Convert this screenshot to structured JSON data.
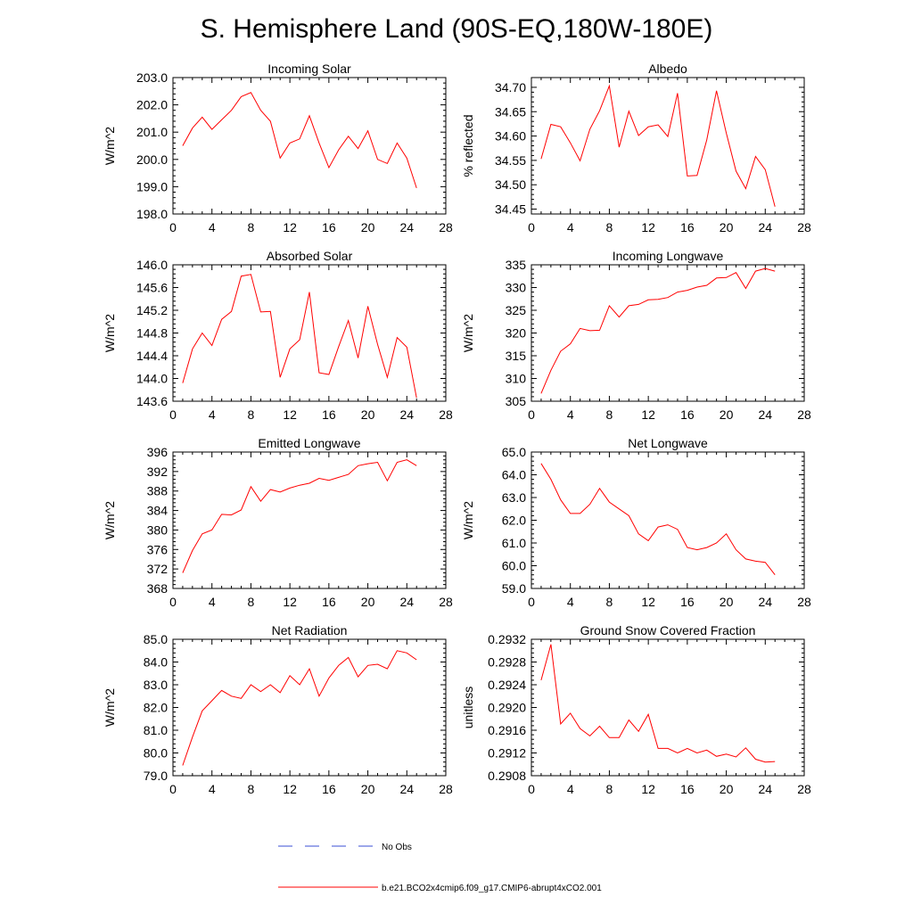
{
  "figure_title": "S. Hemisphere Land (90S-EQ,180W-180E)",
  "colors": {
    "model_line": "#ff0000",
    "obs_line": "#3b4fd6",
    "axis": "#000000"
  },
  "legend": {
    "obs_label": "No Obs",
    "model_label": "b.e21.BCO2x4cmip6.f09_g17.CMIP6-abrupt4xCO2.001"
  },
  "chart_data": [
    {
      "type": "line",
      "title": "Incoming Solar",
      "xlabel": "",
      "ylabel": "W/m^2",
      "xlim": [
        0,
        28
      ],
      "ylim": [
        198.0,
        203.0
      ],
      "xticks": [
        "0",
        "4",
        "8",
        "12",
        "16",
        "20",
        "24",
        "28"
      ],
      "yticks": [
        "198.0",
        "199.0",
        "200.0",
        "201.0",
        "202.0",
        "203.0"
      ],
      "x": [
        1,
        2,
        3,
        4,
        5,
        6,
        7,
        8,
        9,
        10,
        11,
        12,
        13,
        14,
        15,
        16,
        17,
        18,
        19,
        20,
        21,
        22,
        23,
        24,
        25
      ],
      "series": [
        {
          "name": "b.e21.BCO2x4cmip6.f09_g17.CMIP6-abrupt4xCO2.001",
          "values": [
            200.5,
            201.15,
            201.55,
            201.1,
            201.45,
            201.8,
            202.3,
            202.45,
            201.8,
            201.4,
            200.05,
            200.6,
            200.75,
            201.6,
            200.6,
            199.7,
            200.35,
            200.85,
            200.4,
            201.05,
            200.0,
            199.85,
            200.6,
            200.05,
            198.95
          ]
        }
      ]
    },
    {
      "type": "line",
      "title": "Albedo",
      "xlabel": "",
      "ylabel": "% reflected",
      "xlim": [
        0,
        28
      ],
      "ylim": [
        34.44,
        34.72
      ],
      "xticks": [
        "0",
        "4",
        "8",
        "12",
        "16",
        "20",
        "24",
        "28"
      ],
      "yticks": [
        "34.45",
        "34.50",
        "34.55",
        "34.60",
        "34.65",
        "34.70"
      ],
      "x": [
        1,
        2,
        3,
        4,
        5,
        6,
        7,
        8,
        9,
        10,
        11,
        12,
        13,
        14,
        15,
        16,
        17,
        18,
        19,
        20,
        21,
        22,
        23,
        24,
        25
      ],
      "series": [
        {
          "name": "b.e21.BCO2x4cmip6.f09_g17.CMIP6-abrupt4xCO2.001",
          "values": [
            34.553,
            34.624,
            34.619,
            34.586,
            34.549,
            34.614,
            34.652,
            34.703,
            34.577,
            34.651,
            34.601,
            34.619,
            34.623,
            34.599,
            34.688,
            34.518,
            34.519,
            34.592,
            34.693,
            34.606,
            34.528,
            34.492,
            34.558,
            34.531,
            34.455
          ]
        }
      ]
    },
    {
      "type": "line",
      "title": "Absorbed Solar",
      "xlabel": "",
      "ylabel": "W/m^2",
      "xlim": [
        0,
        28
      ],
      "ylim": [
        143.6,
        146.0
      ],
      "xticks": [
        "0",
        "4",
        "8",
        "12",
        "16",
        "20",
        "24",
        "28"
      ],
      "yticks": [
        "143.6",
        "144.0",
        "144.4",
        "144.8",
        "145.2",
        "145.6",
        "146.0"
      ],
      "x": [
        1,
        2,
        3,
        4,
        5,
        6,
        7,
        8,
        9,
        10,
        11,
        12,
        13,
        14,
        15,
        16,
        17,
        18,
        19,
        20,
        21,
        22,
        23,
        24,
        25
      ],
      "series": [
        {
          "name": "b.e21.BCO2x4cmip6.f09_g17.CMIP6-abrupt4xCO2.001",
          "values": [
            143.92,
            144.52,
            144.8,
            144.58,
            145.04,
            145.18,
            145.8,
            145.83,
            145.17,
            145.18,
            144.02,
            144.52,
            144.68,
            145.52,
            144.1,
            144.07,
            144.56,
            145.02,
            144.36,
            145.27,
            144.6,
            144.02,
            144.72,
            144.55,
            143.66
          ]
        }
      ]
    },
    {
      "type": "line",
      "title": "Incoming Longwave",
      "xlabel": "",
      "ylabel": "W/m^2",
      "xlim": [
        0,
        28
      ],
      "ylim": [
        305,
        335
      ],
      "xticks": [
        "0",
        "4",
        "8",
        "12",
        "16",
        "20",
        "24",
        "28"
      ],
      "yticks": [
        "305",
        "310",
        "315",
        "320",
        "325",
        "330",
        "335"
      ],
      "x": [
        1,
        2,
        3,
        4,
        5,
        6,
        7,
        8,
        9,
        10,
        11,
        12,
        13,
        14,
        15,
        16,
        17,
        18,
        19,
        20,
        21,
        22,
        23,
        24,
        25
      ],
      "series": [
        {
          "name": "b.e21.BCO2x4cmip6.f09_g17.CMIP6-abrupt4xCO2.001",
          "values": [
            306.7,
            311.8,
            316.0,
            317.6,
            321.0,
            320.5,
            320.6,
            326.0,
            323.5,
            326.0,
            326.3,
            327.3,
            327.4,
            327.8,
            329.0,
            329.4,
            330.1,
            330.5,
            332.1,
            332.2,
            333.3,
            329.8,
            333.6,
            334.2,
            333.6
          ]
        }
      ]
    },
    {
      "type": "line",
      "title": "Emitted Longwave",
      "xlabel": "",
      "ylabel": "W/m^2",
      "xlim": [
        0,
        28
      ],
      "ylim": [
        368,
        396
      ],
      "xticks": [
        "0",
        "4",
        "8",
        "12",
        "16",
        "20",
        "24",
        "28"
      ],
      "yticks": [
        "368",
        "372",
        "376",
        "380",
        "384",
        "388",
        "392",
        "396"
      ],
      "x": [
        1,
        2,
        3,
        4,
        5,
        6,
        7,
        8,
        9,
        10,
        11,
        12,
        13,
        14,
        15,
        16,
        17,
        18,
        19,
        20,
        21,
        22,
        23,
        24,
        25
      ],
      "series": [
        {
          "name": "b.e21.BCO2x4cmip6.f09_g17.CMIP6-abrupt4xCO2.001",
          "values": [
            371.2,
            375.8,
            379.2,
            380.0,
            383.2,
            383.1,
            384.1,
            388.9,
            385.9,
            388.3,
            387.8,
            388.6,
            389.2,
            389.6,
            390.6,
            390.2,
            390.8,
            391.4,
            393.2,
            393.6,
            393.9,
            390.1,
            393.9,
            394.4,
            393.2
          ]
        }
      ]
    },
    {
      "type": "line",
      "title": "Net Longwave",
      "xlabel": "",
      "ylabel": "W/m^2",
      "xlim": [
        0,
        28
      ],
      "ylim": [
        59.0,
        65.0
      ],
      "xticks": [
        "0",
        "4",
        "8",
        "12",
        "16",
        "20",
        "24",
        "28"
      ],
      "yticks": [
        "59.0",
        "60.0",
        "61.0",
        "62.0",
        "63.0",
        "64.0",
        "65.0"
      ],
      "x": [
        1,
        2,
        3,
        4,
        5,
        6,
        7,
        8,
        9,
        10,
        11,
        12,
        13,
        14,
        15,
        16,
        17,
        18,
        19,
        20,
        21,
        22,
        23,
        24,
        25
      ],
      "series": [
        {
          "name": "b.e21.BCO2x4cmip6.f09_g17.CMIP6-abrupt4xCO2.001",
          "values": [
            64.5,
            63.8,
            62.9,
            62.3,
            62.3,
            62.7,
            63.4,
            62.8,
            62.5,
            62.2,
            61.4,
            61.1,
            61.7,
            61.8,
            61.6,
            60.8,
            60.7,
            60.8,
            61.0,
            61.4,
            60.7,
            60.3,
            60.2,
            60.15,
            59.6
          ]
        }
      ]
    },
    {
      "type": "line",
      "title": "Net Radiation",
      "xlabel": "",
      "ylabel": "W/m^2",
      "xlim": [
        0,
        28
      ],
      "ylim": [
        79.0,
        85.0
      ],
      "xticks": [
        "0",
        "4",
        "8",
        "12",
        "16",
        "20",
        "24",
        "28"
      ],
      "yticks": [
        "79.0",
        "80.0",
        "81.0",
        "82.0",
        "83.0",
        "84.0",
        "85.0"
      ],
      "x": [
        1,
        2,
        3,
        4,
        5,
        6,
        7,
        8,
        9,
        10,
        11,
        12,
        13,
        14,
        15,
        16,
        17,
        18,
        19,
        20,
        21,
        22,
        23,
        24,
        25
      ],
      "series": [
        {
          "name": "b.e21.BCO2x4cmip6.f09_g17.CMIP6-abrupt4xCO2.001",
          "values": [
            79.45,
            80.7,
            81.85,
            82.3,
            82.75,
            82.5,
            82.4,
            83.0,
            82.7,
            83.0,
            82.65,
            83.4,
            83.0,
            83.7,
            82.5,
            83.3,
            83.85,
            84.2,
            83.35,
            83.85,
            83.9,
            83.7,
            84.5,
            84.4,
            84.1
          ]
        }
      ]
    },
    {
      "type": "line",
      "title": "Ground Snow Covered Fraction",
      "xlabel": "",
      "ylabel": "unitless",
      "xlim": [
        0,
        28
      ],
      "ylim": [
        0.2908,
        0.2932
      ],
      "xticks": [
        "0",
        "4",
        "8",
        "12",
        "16",
        "20",
        "24",
        "28"
      ],
      "yticks": [
        "0.2908",
        "0.2912",
        "0.2916",
        "0.2920",
        "0.2924",
        "0.2928",
        "0.2932"
      ],
      "x": [
        1,
        2,
        3,
        4,
        5,
        6,
        7,
        8,
        9,
        10,
        11,
        12,
        13,
        14,
        15,
        16,
        17,
        18,
        19,
        20,
        21,
        22,
        23,
        24,
        25
      ],
      "series": [
        {
          "name": "b.e21.BCO2x4cmip6.f09_g17.CMIP6-abrupt4xCO2.001",
          "values": [
            0.29248,
            0.29311,
            0.29171,
            0.2919,
            0.29163,
            0.2915,
            0.29167,
            0.29147,
            0.29147,
            0.29178,
            0.29158,
            0.29188,
            0.29128,
            0.29128,
            0.2912,
            0.29128,
            0.2912,
            0.29125,
            0.29114,
            0.29118,
            0.29113,
            0.29129,
            0.29109,
            0.29104,
            0.29105
          ]
        }
      ]
    }
  ]
}
